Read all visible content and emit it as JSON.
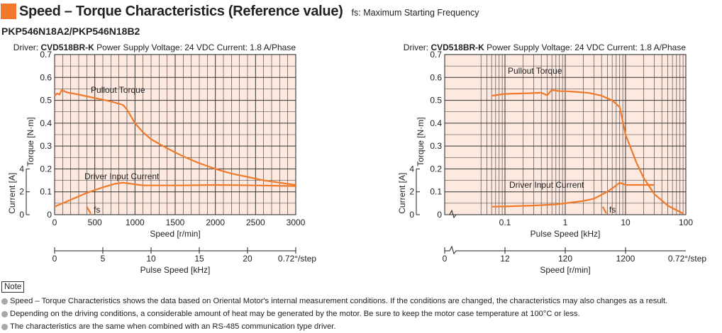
{
  "header": {
    "title": "Speed – Torque Characteristics (Reference value)",
    "fs_note": "fs: Maximum Starting Frequency"
  },
  "model": "PKP546N18A2/PKP546N18B2",
  "notes": {
    "label": "Note",
    "items": [
      "Speed – Torque Characteristics shows the data based on Oriental Motor's internal measurement conditions. If the conditions are changed, the characteristics may also changes as a result.",
      "Depending on the driving conditions, a considerable amount of heat may be generated by the motor. Be sure to keep the motor case temperature at 100°C or less.",
      "The characteristics are the same when combined with an RS-485 communication type driver."
    ]
  },
  "colors": {
    "plot_bg": "#fde9e0",
    "curve": "#f07a2a",
    "grid": "#333333"
  },
  "chart_data": [
    {
      "type": "line",
      "x_scale": "linear",
      "conditions": {
        "driver_label": "Driver:",
        "driver": "CVD518BR-K",
        "supply": "Power Supply Voltage: 24 VDC  Current: 1.8 A/Phase"
      },
      "xlabel": "Speed [r/min]",
      "ylabel": "Torque [N·m]",
      "y2label": "Current [A]",
      "xlim": [
        0,
        3000
      ],
      "ylim": [
        0,
        0.7
      ],
      "x_ticks": [
        0,
        500,
        1000,
        1500,
        2000,
        2500,
        3000
      ],
      "y_ticks": [
        0,
        0.1,
        0.2,
        0.3,
        0.4,
        0.5,
        0.6,
        0.7
      ],
      "y_tick_labels": [
        "0",
        "0.1",
        "0.2",
        "0.3",
        "0.4",
        "0.5",
        "0.6",
        "0.7"
      ],
      "current_ticks": [
        0,
        2,
        4
      ],
      "secondary_axis": {
        "label": "Pulse Speed [kHz]",
        "ticks": [
          0,
          5,
          10,
          15,
          20
        ],
        "range": [
          0,
          25
        ],
        "step_label": "0.72°/step"
      },
      "series": [
        {
          "name": "Pullout Torque",
          "x": [
            0,
            30,
            60,
            90,
            150,
            300,
            500,
            700,
            850,
            900,
            950,
            1000,
            1100,
            1200,
            1400,
            1600,
            1800,
            2000,
            2200,
            2400,
            2600,
            2800,
            3000
          ],
          "y": [
            0.52,
            0.53,
            0.525,
            0.545,
            0.535,
            0.525,
            0.51,
            0.495,
            0.48,
            0.46,
            0.43,
            0.4,
            0.36,
            0.33,
            0.29,
            0.255,
            0.225,
            0.2,
            0.18,
            0.165,
            0.15,
            0.14,
            0.13
          ]
        },
        {
          "name": "Driver Input Current",
          "x": [
            0,
            200,
            400,
            600,
            750,
            850,
            950,
            1100,
            1300,
            1600,
            2000,
            2500,
            3000
          ],
          "y": [
            0.035,
            0.065,
            0.095,
            0.12,
            0.135,
            0.14,
            0.135,
            0.128,
            0.128,
            0.128,
            0.13,
            0.128,
            0.125
          ]
        }
      ],
      "fs": {
        "label": "fs",
        "x": [
          400,
          450
        ],
        "y": [
          0.035,
          0.005
        ]
      }
    },
    {
      "type": "line",
      "x_scale": "log",
      "conditions": {
        "driver_label": "Driver:",
        "driver": "CVD518BR-K",
        "supply": "Power Supply Voltage: 24 VDC  Current: 1.8 A/Phase"
      },
      "xlabel": "Pulse Speed [kHz]",
      "ylabel": "Torque [N·m]",
      "y2label": "Current [A]",
      "xlim": [
        0.01,
        100
      ],
      "ylim": [
        0,
        0.7
      ],
      "x_ticks": [
        0.1,
        1,
        10,
        100
      ],
      "x_tick_labels": [
        "0.1",
        "1",
        "10",
        "100"
      ],
      "y_ticks": [
        0,
        0.1,
        0.2,
        0.3,
        0.4,
        0.5,
        0.6,
        0.7
      ],
      "y_tick_labels": [
        "0",
        "0.1",
        "0.2",
        "0.3",
        "0.4",
        "0.5",
        "0.6",
        "0.7"
      ],
      "current_ticks": [
        0,
        2,
        4
      ],
      "secondary_axis": {
        "label": "Speed [r/min]",
        "ticks": [
          "0",
          "12",
          "120",
          "1200"
        ],
        "step_label": "0.72°/step"
      },
      "series": [
        {
          "name": "Pullout Torque",
          "x": [
            0.06,
            0.1,
            0.2,
            0.4,
            0.5,
            0.6,
            0.8,
            1,
            1.5,
            2.5,
            4,
            6,
            8,
            10,
            15,
            20,
            30,
            50,
            90
          ],
          "y": [
            0.52,
            0.528,
            0.53,
            0.533,
            0.522,
            0.545,
            0.54,
            0.54,
            0.537,
            0.532,
            0.52,
            0.5,
            0.47,
            0.35,
            0.23,
            0.16,
            0.09,
            0.04,
            0.005
          ]
        },
        {
          "name": "Driver Input Current",
          "x": [
            0.06,
            0.1,
            0.3,
            0.7,
            1,
            2,
            3,
            5,
            6,
            7,
            8,
            10,
            15,
            20,
            30
          ],
          "y": [
            0.035,
            0.036,
            0.04,
            0.045,
            0.05,
            0.06,
            0.07,
            0.1,
            0.115,
            0.128,
            0.14,
            0.13,
            0.13,
            0.13,
            0.13
          ]
        }
      ],
      "fs": {
        "label": "fs",
        "x": [
          4.2,
          4.8
        ],
        "y": [
          0.035,
          0.005
        ]
      }
    }
  ]
}
